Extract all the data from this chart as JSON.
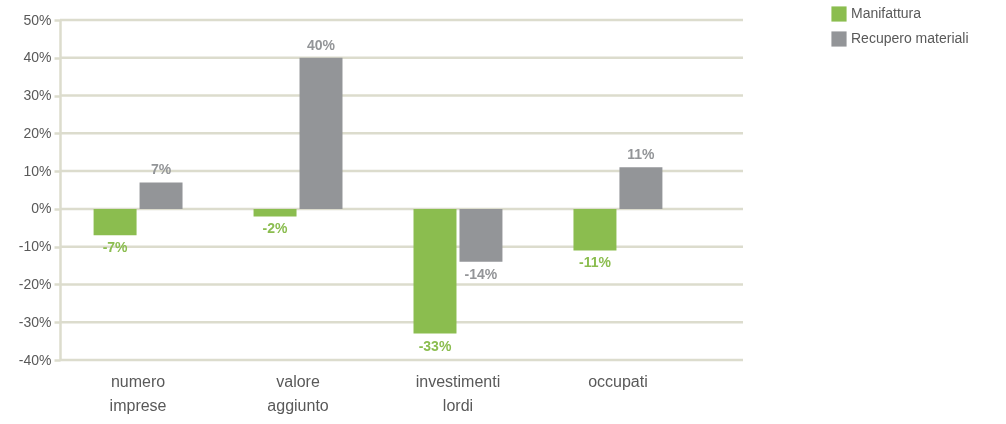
{
  "chart_data": {
    "type": "bar",
    "categories": [
      "numero imprese",
      "valore aggiunto",
      "investimenti lordi",
      "occupati"
    ],
    "series": [
      {
        "name": "Manifattura",
        "color": "#8bbd4f",
        "values": [
          -7,
          -2,
          -33,
          -11
        ],
        "value_labels": [
          "-7%",
          "-2%",
          "-33%",
          "-11%"
        ]
      },
      {
        "name": "Recupero materiali",
        "color": "#939598",
        "values": [
          7,
          40,
          -14,
          11
        ],
        "value_labels": [
          "7%",
          "40%",
          "-14%",
          "11%"
        ]
      }
    ],
    "ylim": [
      -40,
      50
    ],
    "yticks": [
      {
        "value": -40,
        "label": "-40%"
      },
      {
        "value": -30,
        "label": "-30%"
      },
      {
        "value": -20,
        "label": "-20%"
      },
      {
        "value": -10,
        "label": "-10%"
      },
      {
        "value": 0,
        "label": "0%"
      },
      {
        "value": 10,
        "label": "10%"
      },
      {
        "value": 20,
        "label": "20%"
      },
      {
        "value": 30,
        "label": "30%"
      },
      {
        "value": 40,
        "label": "40%"
      },
      {
        "value": 50,
        "label": "50%"
      }
    ],
    "grid": "y",
    "legend": "top right"
  }
}
